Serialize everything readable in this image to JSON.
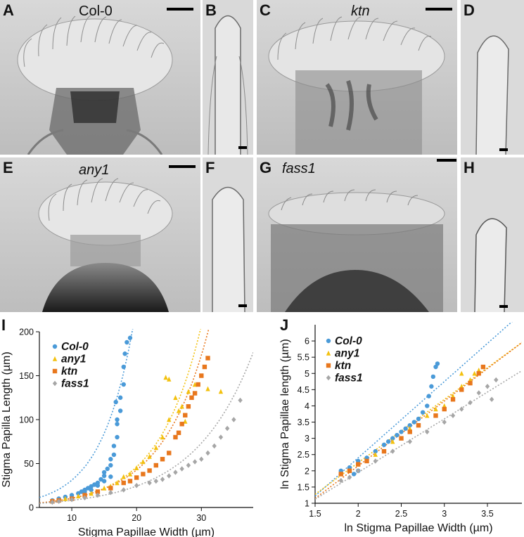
{
  "micrographs": [
    {
      "id": "A",
      "label": "A",
      "genotype": "Col-0",
      "italic": false
    },
    {
      "id": "B",
      "label": "B"
    },
    {
      "id": "C",
      "label": "C",
      "genotype": "ktn",
      "italic": true
    },
    {
      "id": "D",
      "label": "D"
    },
    {
      "id": "E",
      "label": "E",
      "genotype": "any1",
      "italic": true
    },
    {
      "id": "F",
      "label": "F"
    },
    {
      "id": "G",
      "label": "G",
      "genotype": "fass1",
      "italic": true
    },
    {
      "id": "H",
      "label": "H"
    }
  ],
  "colors": {
    "col0": "#4a9ad8",
    "any1": "#f3c10f",
    "ktn": "#e8771d",
    "fass1": "#a6a6a6"
  },
  "chart_data": [
    {
      "panel": "I",
      "type": "scatter",
      "xlabel": "Stigma Papillae Width (µm)",
      "ylabel": "Stigma Papilla Length (µm)",
      "xlim": [
        5,
        38
      ],
      "ylim": [
        0,
        200
      ],
      "xticks": [
        "10",
        "20",
        "30"
      ],
      "yticks": [
        "0",
        "50",
        "100",
        "150",
        "200"
      ],
      "legend_position": "top-left",
      "series": [
        {
          "name": "Col-0",
          "marker": "circle",
          "color": "#4a9ad8",
          "points": [
            [
              7,
              8
            ],
            [
              8,
              10
            ],
            [
              9,
              12
            ],
            [
              10,
              14
            ],
            [
              11,
              16
            ],
            [
              11.5,
              18
            ],
            [
              12,
              20
            ],
            [
              12.5,
              22
            ],
            [
              13,
              24
            ],
            [
              13.5,
              26
            ],
            [
              14,
              28
            ],
            [
              14.5,
              32
            ],
            [
              15,
              36
            ],
            [
              15,
              40
            ],
            [
              15.5,
              44
            ],
            [
              16,
              48
            ],
            [
              16,
              55
            ],
            [
              16.5,
              60
            ],
            [
              16.5,
              70
            ],
            [
              17,
              80
            ],
            [
              17,
              95
            ],
            [
              17.5,
              110
            ],
            [
              17.5,
              125
            ],
            [
              18,
              140
            ],
            [
              18,
              160
            ],
            [
              18.5,
              188
            ],
            [
              19,
              193
            ],
            [
              16,
              35
            ],
            [
              15,
              30
            ],
            [
              14,
              25
            ],
            [
              13,
              20
            ],
            [
              12,
              18
            ],
            [
              17,
              100
            ],
            [
              16.8,
              120
            ],
            [
              18.2,
              175
            ]
          ],
          "trend": {
            "a": 4.2,
            "b": 0.2
          }
        },
        {
          "name": "any1",
          "marker": "triangle",
          "color": "#f3c10f",
          "points": [
            [
              7,
              7
            ],
            [
              9,
              10
            ],
            [
              11,
              13
            ],
            [
              13,
              16
            ],
            [
              15,
              22
            ],
            [
              17,
              28
            ],
            [
              18,
              35
            ],
            [
              20,
              45
            ],
            [
              21,
              52
            ],
            [
              22,
              58
            ],
            [
              23,
              68
            ],
            [
              24,
              80
            ],
            [
              24.5,
              148
            ],
            [
              25,
              100
            ],
            [
              26,
              125
            ],
            [
              26.5,
              110
            ],
            [
              27,
              115
            ],
            [
              28,
              132
            ],
            [
              29,
              140
            ],
            [
              31,
              135
            ],
            [
              33,
              132
            ],
            [
              16,
              24
            ],
            [
              19,
              38
            ],
            [
              25,
              146
            ],
            [
              27.5,
              98
            ]
          ],
          "trend": {
            "a": 2.3,
            "b": 0.15
          }
        },
        {
          "name": "ktn",
          "marker": "square",
          "color": "#e8771d",
          "points": [
            [
              7,
              7
            ],
            [
              8,
              8
            ],
            [
              10,
              10
            ],
            [
              12,
              14
            ],
            [
              14,
              18
            ],
            [
              16,
              22
            ],
            [
              18,
              28
            ],
            [
              20,
              34
            ],
            [
              22,
              42
            ],
            [
              24,
              55
            ],
            [
              25,
              62
            ],
            [
              26,
              80
            ],
            [
              27,
              95
            ],
            [
              27.5,
              105
            ],
            [
              28,
              115
            ],
            [
              29,
              130
            ],
            [
              29.5,
              140
            ],
            [
              30,
              150
            ],
            [
              30.5,
              160
            ],
            [
              31,
              170
            ],
            [
              28.5,
              125
            ],
            [
              26.5,
              85
            ],
            [
              23,
              48
            ],
            [
              19,
              30
            ],
            [
              21,
              38
            ]
          ],
          "trend": {
            "a": 2.6,
            "b": 0.14
          }
        },
        {
          "name": "fass1",
          "marker": "diamond",
          "color": "#a6a6a6",
          "points": [
            [
              7,
              6
            ],
            [
              8,
              7
            ],
            [
              10,
              9
            ],
            [
              12,
              11
            ],
            [
              14,
              14
            ],
            [
              16,
              17
            ],
            [
              18,
              20
            ],
            [
              20,
              25
            ],
            [
              22,
              28
            ],
            [
              24,
              32
            ],
            [
              25,
              36
            ],
            [
              26,
              40
            ],
            [
              28,
              48
            ],
            [
              30,
              55
            ],
            [
              31,
              62
            ],
            [
              32,
              70
            ],
            [
              33,
              80
            ],
            [
              34,
              90
            ],
            [
              35,
              100
            ],
            [
              36,
              122
            ],
            [
              23,
              30
            ],
            [
              27,
              44
            ],
            [
              29,
              52
            ]
          ],
          "trend": {
            "a": 2.7,
            "b": 0.11
          }
        }
      ]
    },
    {
      "panel": "J",
      "type": "scatter",
      "xlabel": "ln Stigma Papillae Width (µm)",
      "ylabel": "ln Stigma Papillae length (µm)",
      "xlim": [
        1.5,
        3.9
      ],
      "ylim": [
        1,
        6.5
      ],
      "xticks": [
        "1.5",
        "2",
        "2.5",
        "3",
        "3.5"
      ],
      "yticks": [
        "1",
        "1.5",
        "2",
        "2.5",
        "3",
        "3.5",
        "4",
        "4.5",
        "5",
        "5.5",
        "6"
      ],
      "legend_position": "top-left",
      "series": [
        {
          "name": "Col-0",
          "marker": "circle",
          "color": "#4a9ad8",
          "points": [
            [
              1.8,
              2.0
            ],
            [
              1.9,
              2.1
            ],
            [
              2.0,
              2.3
            ],
            [
              2.1,
              2.4
            ],
            [
              2.2,
              2.6
            ],
            [
              2.3,
              2.8
            ],
            [
              2.35,
              2.9
            ],
            [
              2.4,
              3.0
            ],
            [
              2.5,
              3.2
            ],
            [
              2.55,
              3.3
            ],
            [
              2.6,
              3.4
            ],
            [
              2.65,
              3.5
            ],
            [
              2.7,
              3.6
            ],
            [
              2.75,
              3.8
            ],
            [
              2.8,
              4.0
            ],
            [
              2.82,
              4.3
            ],
            [
              2.85,
              4.6
            ],
            [
              2.87,
              4.9
            ],
            [
              2.9,
              5.2
            ],
            [
              2.92,
              5.3
            ],
            [
              2.45,
              3.1
            ],
            [
              2.0,
              2.0
            ],
            [
              1.95,
              1.9
            ]
          ],
          "trend": {
            "m": 2.35,
            "c": -2.3
          }
        },
        {
          "name": "any1",
          "marker": "triangle",
          "color": "#f3c10f",
          "points": [
            [
              1.8,
              1.9
            ],
            [
              1.9,
              2.0
            ],
            [
              2.0,
              2.2
            ],
            [
              2.2,
              2.5
            ],
            [
              2.4,
              2.9
            ],
            [
              2.6,
              3.3
            ],
            [
              2.8,
              3.7
            ],
            [
              3.0,
              4.0
            ],
            [
              3.1,
              4.3
            ],
            [
              3.2,
              4.6
            ],
            [
              3.3,
              4.8
            ],
            [
              3.35,
              5.0
            ],
            [
              3.4,
              5.1
            ],
            [
              3.2,
              5.0
            ],
            [
              2.9,
              3.9
            ]
          ],
          "trend": {
            "m": 1.95,
            "c": -1.65
          }
        },
        {
          "name": "ktn",
          "marker": "square",
          "color": "#e8771d",
          "points": [
            [
              1.8,
              1.9
            ],
            [
              1.9,
              2.0
            ],
            [
              2.0,
              2.2
            ],
            [
              2.1,
              2.3
            ],
            [
              2.3,
              2.6
            ],
            [
              2.5,
              3.0
            ],
            [
              2.7,
              3.4
            ],
            [
              2.9,
              3.7
            ],
            [
              3.0,
              3.9
            ],
            [
              3.1,
              4.2
            ],
            [
              3.2,
              4.5
            ],
            [
              3.3,
              4.7
            ],
            [
              3.4,
              5.0
            ],
            [
              3.45,
              5.2
            ],
            [
              2.6,
              3.2
            ]
          ],
          "trend": {
            "m": 2.0,
            "c": -1.85
          }
        },
        {
          "name": "fass1",
          "marker": "diamond",
          "color": "#a6a6a6",
          "points": [
            [
              1.8,
              1.7
            ],
            [
              1.9,
              1.8
            ],
            [
              2.0,
              2.0
            ],
            [
              2.2,
              2.3
            ],
            [
              2.4,
              2.6
            ],
            [
              2.6,
              2.9
            ],
            [
              2.8,
              3.2
            ],
            [
              3.0,
              3.5
            ],
            [
              3.1,
              3.7
            ],
            [
              3.2,
              3.9
            ],
            [
              3.3,
              4.1
            ],
            [
              3.4,
              4.4
            ],
            [
              3.5,
              4.6
            ],
            [
              3.6,
              4.8
            ],
            [
              3.55,
              4.2
            ]
          ],
          "trend": {
            "m": 1.65,
            "c": -1.35
          }
        }
      ]
    }
  ]
}
